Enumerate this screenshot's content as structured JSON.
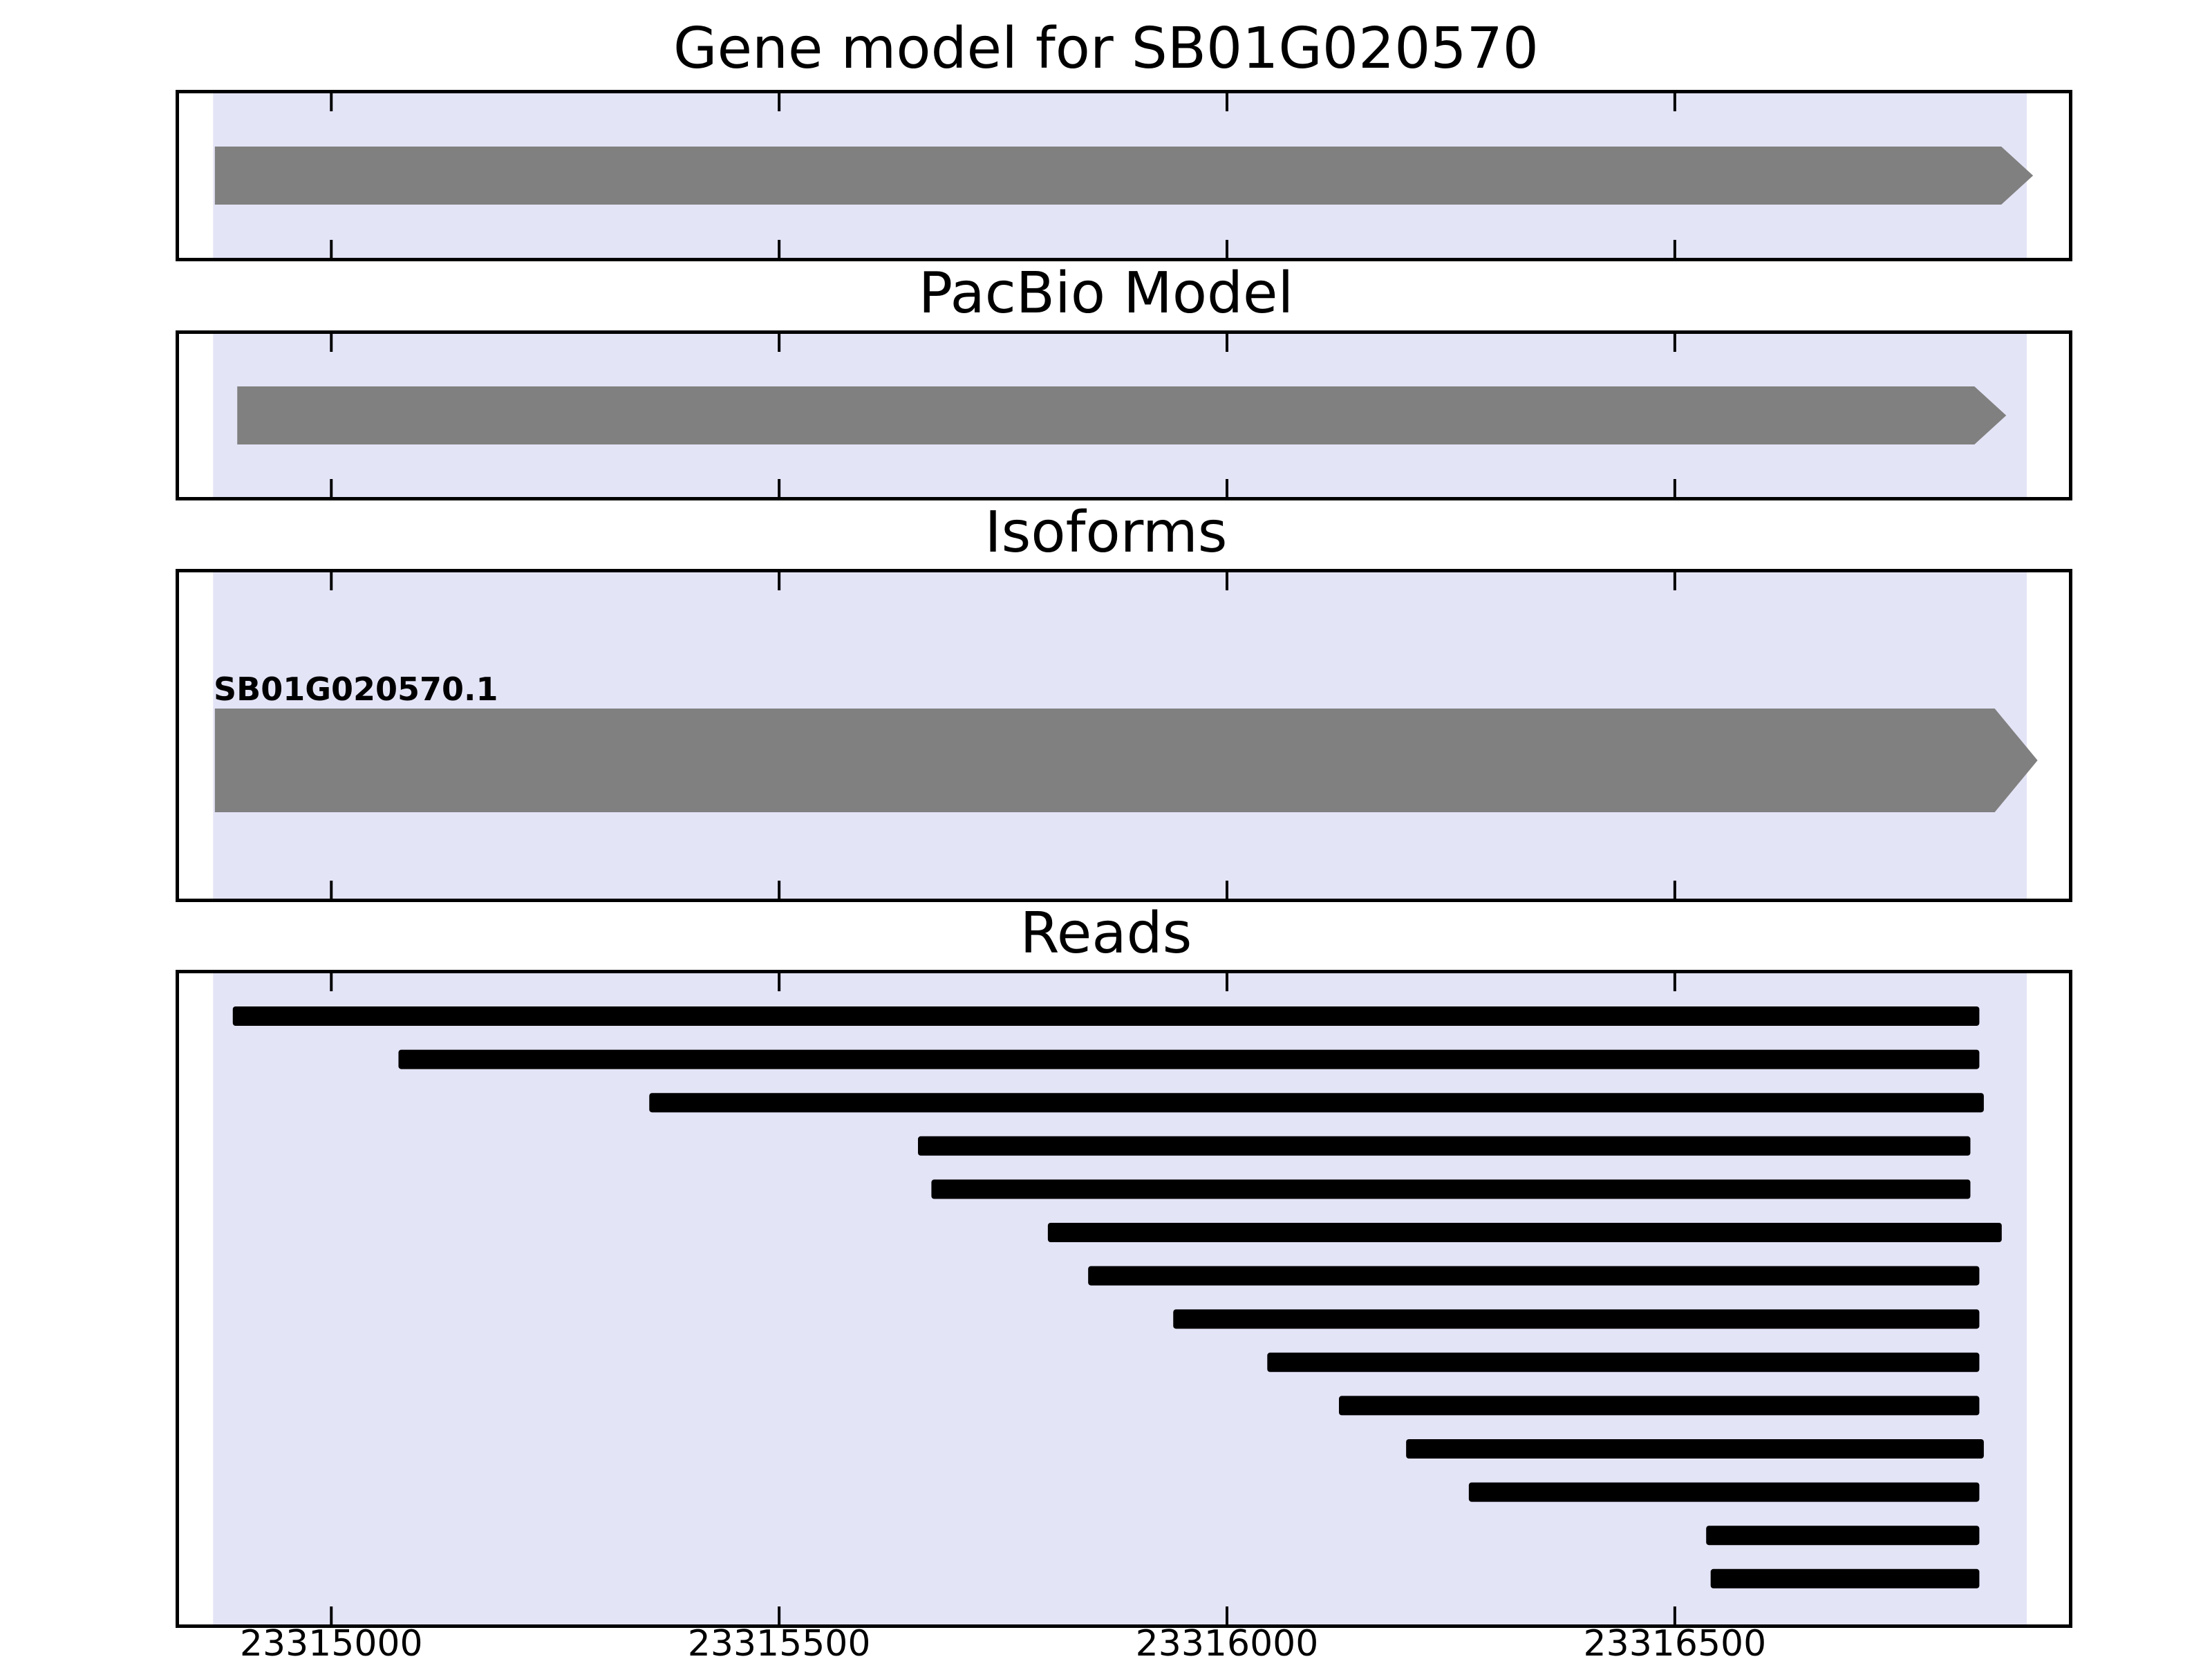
{
  "colors": {
    "highlight": "#E4E4F7",
    "feature": "#808080",
    "read": "#000000",
    "border": "#000000",
    "background": "#FFFFFF",
    "text": "#000000"
  },
  "chart_data": {
    "type": "genome-browser",
    "title": "Gene model for SB01G020570",
    "xlim": [
      23314830,
      23316940
    ],
    "x_ticks": [
      23315000,
      23315500,
      23316000,
      23316500
    ],
    "grid": false,
    "highlight_region": {
      "start": 23314868,
      "end": 23316893
    },
    "panels": [
      {
        "id": "gene_model",
        "title": "Gene model for SB01G020570",
        "type": "arrow",
        "features": [
          {
            "start": 23314870,
            "end": 23316900,
            "direction": "right"
          }
        ]
      },
      {
        "id": "pacbio_model",
        "title": "PacBio Model",
        "type": "arrow",
        "features": [
          {
            "start": 23314895,
            "end": 23316870,
            "direction": "right"
          }
        ]
      },
      {
        "id": "isoforms",
        "title": "Isoforms",
        "type": "arrow",
        "features": [
          {
            "label": "SB01G020570.1",
            "start": 23314870,
            "end": 23316905,
            "direction": "right"
          }
        ]
      },
      {
        "id": "reads",
        "title": "Reads",
        "type": "reads",
        "features": [
          {
            "start": 23314890,
            "end": 23316840
          },
          {
            "start": 23315075,
            "end": 23316840
          },
          {
            "start": 23315355,
            "end": 23316845
          },
          {
            "start": 23315655,
            "end": 23316830
          },
          {
            "start": 23315670,
            "end": 23316830
          },
          {
            "start": 23315800,
            "end": 23316865
          },
          {
            "start": 23315845,
            "end": 23316840
          },
          {
            "start": 23315940,
            "end": 23316840
          },
          {
            "start": 23316045,
            "end": 23316840
          },
          {
            "start": 23316125,
            "end": 23316840
          },
          {
            "start": 23316200,
            "end": 23316845
          },
          {
            "start": 23316270,
            "end": 23316840
          },
          {
            "start": 23316535,
            "end": 23316840
          },
          {
            "start": 23316540,
            "end": 23316840
          }
        ]
      }
    ]
  }
}
